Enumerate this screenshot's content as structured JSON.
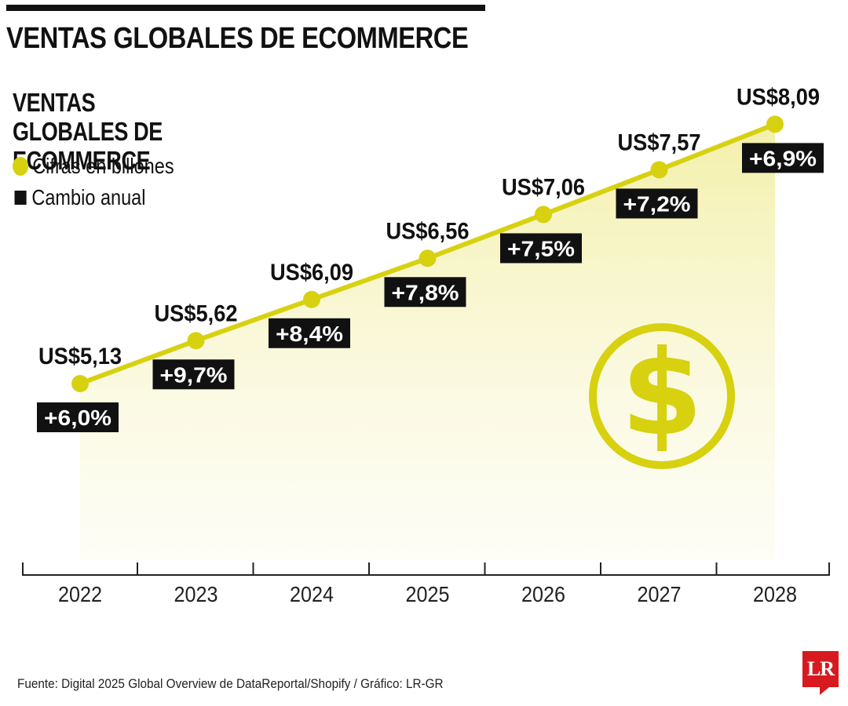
{
  "headline": "VENTAS GLOBALES DE ECOMMERCE",
  "legend": {
    "dot_label": "Cifras en billones",
    "square_label": "Cambio anual"
  },
  "source": "Fuente: Digital 2025 Global Overview de DataReportal/Shopify / Gráfico: LR-GR",
  "logo": "LR",
  "colors": {
    "accent": "#d7d110",
    "label_box": "#111111",
    "logo": "#d71920"
  },
  "icon": "dollar-coin-icon",
  "chart_data": {
    "type": "line",
    "title": "VENTAS GLOBALES DE ECOMMERCE",
    "x": [
      "2022",
      "2023",
      "2024",
      "2025",
      "2026",
      "2027",
      "2028"
    ],
    "series": [
      {
        "name": "Cifras en billones",
        "values": [
          5.13,
          5.62,
          6.09,
          6.56,
          7.06,
          7.57,
          8.09
        ],
        "labels": [
          "US$5,13",
          "US$5,62",
          "US$6,09",
          "US$6,56",
          "US$7,06",
          "US$7,57",
          "US$8,09"
        ]
      },
      {
        "name": "Cambio anual",
        "values": [
          6.0,
          9.7,
          8.4,
          7.8,
          7.5,
          7.2,
          6.9
        ],
        "labels": [
          "+6,0%",
          "+9,7%",
          "+8,4%",
          "+7,8%",
          "+7,5%",
          "+7,2%",
          "+6,9%"
        ]
      }
    ],
    "grid": false,
    "legend": "top-left"
  }
}
